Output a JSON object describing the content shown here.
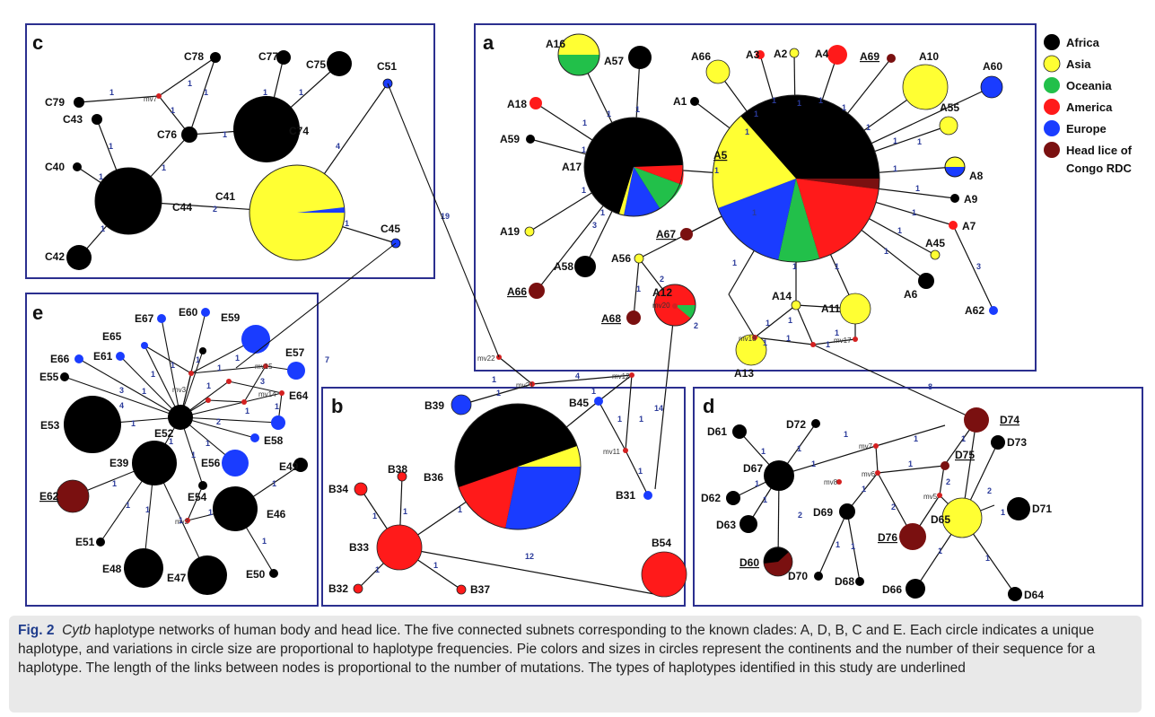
{
  "legend": {
    "items": [
      {
        "label": "Africa",
        "color": "#000000"
      },
      {
        "label": "Asia",
        "color": "#ffff33"
      },
      {
        "label": "Oceania",
        "color": "#22c04a"
      },
      {
        "label": "America",
        "color": "#ff1a1a"
      },
      {
        "label": "Europe",
        "color": "#1a3cff"
      },
      {
        "label": "Head lice of",
        "color": "#7a1010"
      }
    ],
    "extra_line": "Congo RDC"
  },
  "panels": {
    "a": "a",
    "b": "b",
    "c": "c",
    "d": "d",
    "e": "e"
  },
  "caption": {
    "fig": "Fig. 2",
    "species": "Cytb",
    "text": " haplotype networks of human body and head lice. The five connected subnets corresponding to the known clades: A, D, B, C and E. Each circle indicates a unique haplotype, and variations in circle size are proportional to haplotype frequencies. Pie colors and sizes in circles represent the continents and the number of their sequence for a haplotype. The length of the links between nodes is proportional to the number of mutations. The types of haplotypes identified in this study are underlined"
  },
  "colors": {
    "africa": "#000000",
    "asia": "#ffff33",
    "oceania": "#22c04a",
    "america": "#ff1a1a",
    "europe": "#1a3cff",
    "congo": "#7a1010",
    "panel_border": "#2b2f8f",
    "mv_node": "#d42020"
  },
  "nodes": [
    {
      "id": "A5",
      "label": "A5",
      "underline": true,
      "color": "pie_A5"
    },
    {
      "id": "A17",
      "label": "A17",
      "color": "pie_A17"
    },
    {
      "id": "A16",
      "label": "A16",
      "color": "pie_A16"
    },
    {
      "id": "A57",
      "label": "A57",
      "color": "africa"
    },
    {
      "id": "A18",
      "label": "A18",
      "color": "america"
    },
    {
      "id": "A59",
      "label": "A59",
      "color": "africa"
    },
    {
      "id": "A19",
      "label": "A19",
      "color": "asia"
    },
    {
      "id": "A66",
      "label": "A66",
      "underline": true,
      "color": "congo"
    },
    {
      "id": "A58",
      "label": "A58",
      "color": "africa"
    },
    {
      "id": "A66b",
      "label": "A66",
      "color": "asia"
    },
    {
      "id": "A3",
      "label": "A3",
      "color": "america"
    },
    {
      "id": "A2",
      "label": "A2",
      "color": "asia"
    },
    {
      "id": "A4",
      "label": "A4",
      "color": "america"
    },
    {
      "id": "A69",
      "label": "A69",
      "underline": true,
      "color": "congo"
    },
    {
      "id": "A10",
      "label": "A10",
      "color": "asia"
    },
    {
      "id": "A60",
      "label": "A60",
      "color": "europe"
    },
    {
      "id": "A1",
      "label": "A1",
      "color": "africa"
    },
    {
      "id": "A55",
      "label": "A55",
      "color": "asia"
    },
    {
      "id": "A8",
      "label": "A8",
      "color": "pie_A8"
    },
    {
      "id": "A9",
      "label": "A9",
      "color": "africa"
    },
    {
      "id": "A7",
      "label": "A7",
      "color": "america"
    },
    {
      "id": "A45",
      "label": "A45",
      "color": "asia"
    },
    {
      "id": "A6",
      "label": "A6",
      "color": "africa"
    },
    {
      "id": "A62",
      "label": "A62",
      "color": "europe"
    },
    {
      "id": "A67",
      "label": "A67",
      "underline": true,
      "color": "congo"
    },
    {
      "id": "A56",
      "label": "A56",
      "color": "asia"
    },
    {
      "id": "A68",
      "label": "A68",
      "underline": true,
      "color": "congo"
    },
    {
      "id": "A12",
      "label": "A12",
      "color": "pie_A12"
    },
    {
      "id": "A14",
      "label": "A14",
      "color": "asia"
    },
    {
      "id": "A11",
      "label": "A11",
      "color": "asia"
    },
    {
      "id": "A13",
      "label": "A13",
      "color": "asia"
    }
  ]
}
